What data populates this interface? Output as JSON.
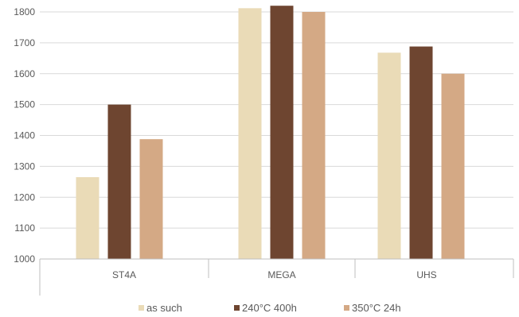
{
  "chart_data": {
    "type": "bar",
    "categories": [
      "ST4A",
      "MEGA",
      "UHS"
    ],
    "series": [
      {
        "name": "as such",
        "color": "#EADBB7",
        "values": [
          1265,
          1812,
          1668
        ]
      },
      {
        "name": "240°C 400h",
        "color": "#6E4530",
        "values": [
          1500,
          1820,
          1688
        ]
      },
      {
        "name": "350°C 24h",
        "color": "#D4A985",
        "values": [
          1388,
          1800,
          1600
        ]
      }
    ],
    "ylim": [
      1000,
      1800
    ],
    "yticks": [
      1000,
      1100,
      1200,
      1300,
      1400,
      1500,
      1600,
      1700,
      1800
    ],
    "grid": true,
    "legend_position": "bottom"
  }
}
